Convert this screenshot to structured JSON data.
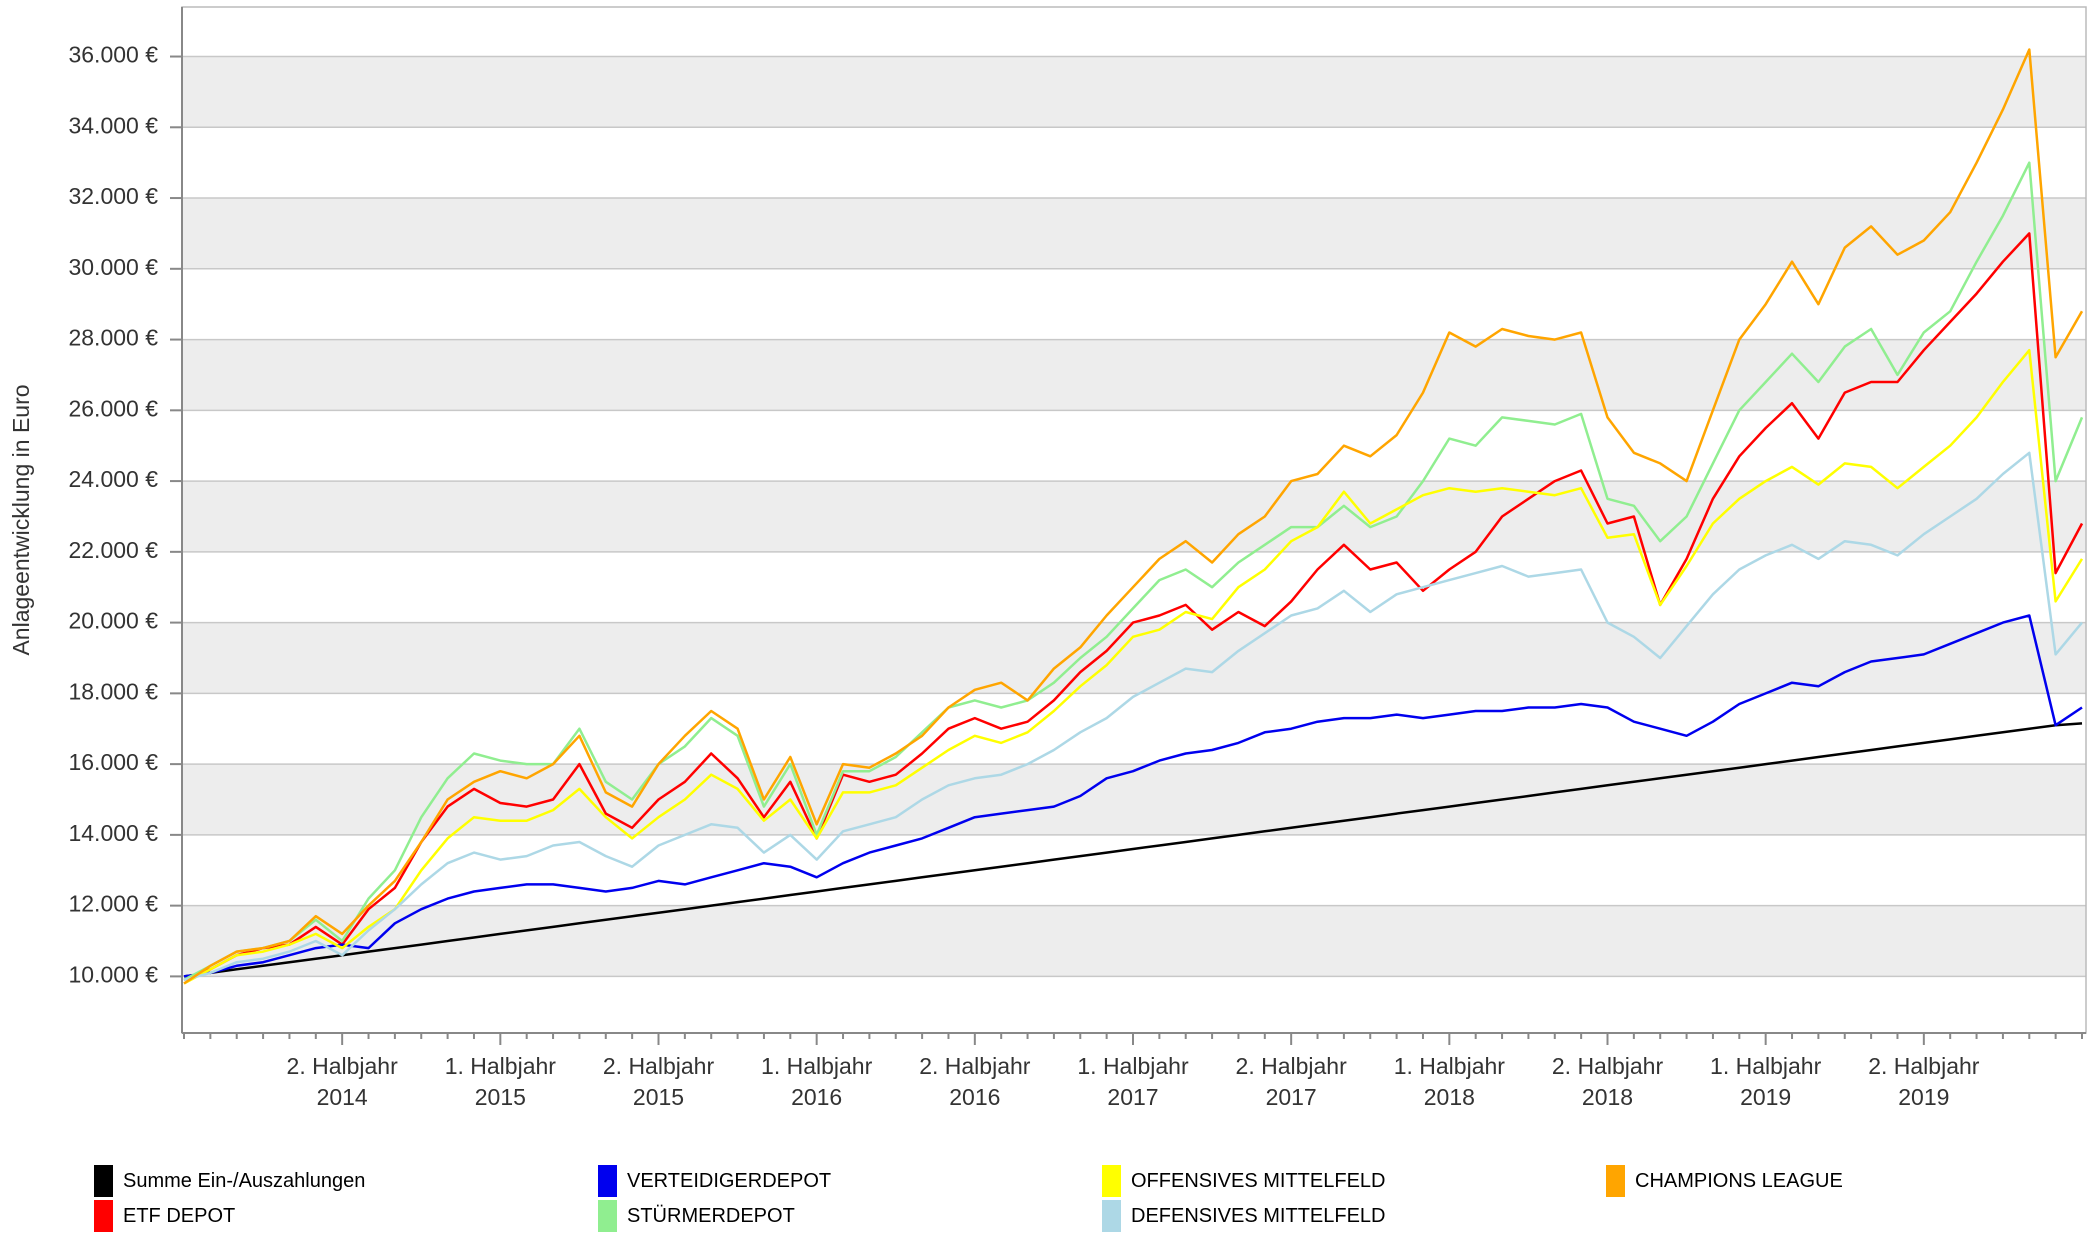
{
  "chart_data": {
    "type": "line",
    "y_label": "Anlageentwicklung  in Euro",
    "categories": [
      null,
      null,
      null,
      null,
      null,
      null,
      "2. Halbjahr 2014",
      null,
      null,
      null,
      null,
      null,
      "1. Halbjahr 2015",
      null,
      null,
      null,
      null,
      null,
      "2. Halbjahr 2015",
      null,
      null,
      null,
      null,
      null,
      "1. Halbjahr 2016",
      null,
      null,
      null,
      null,
      null,
      "2. Halbjahr 2016",
      null,
      null,
      null,
      null,
      null,
      "1. Halbjahr 2017",
      null,
      null,
      null,
      null,
      null,
      "2. Halbjahr 2017",
      null,
      null,
      null,
      null,
      null,
      "1. Halbjahr 2018",
      null,
      null,
      null,
      null,
      null,
      "2. Halbjahr 2018",
      null,
      null,
      null,
      null,
      null,
      "1. Halbjahr 2019",
      null,
      null,
      null,
      null,
      null,
      "2. Halbjahr 2019",
      null,
      null,
      null,
      null,
      null,
      null
    ],
    "ylim": [
      8400,
      37400
    ],
    "yticks": [
      {
        "value": 10000,
        "label": "10.000 €"
      },
      {
        "value": 12000,
        "label": "12.000 €"
      },
      {
        "value": 14000,
        "label": "14.000 €"
      },
      {
        "value": 16000,
        "label": "16.000 €"
      },
      {
        "value": 18000,
        "label": "18.000 €"
      },
      {
        "value": 20000,
        "label": "20.000 €"
      },
      {
        "value": 22000,
        "label": "22.000 €"
      },
      {
        "value": 24000,
        "label": "24.000 €"
      },
      {
        "value": 26000,
        "label": "26.000 €"
      },
      {
        "value": 28000,
        "label": "28.000 €"
      },
      {
        "value": 30000,
        "label": "30.000 €"
      },
      {
        "value": 32000,
        "label": "32.000 €"
      },
      {
        "value": 34000,
        "label": "34.000 €"
      },
      {
        "value": 36000,
        "label": "36.000 €"
      }
    ],
    "grid": true,
    "series": [
      {
        "name": "Summe Ein-/Auszahlungen",
        "color": "#000000",
        "values": [
          10000,
          10100,
          10200,
          10300,
          10400,
          10500,
          10600,
          10700,
          10800,
          10900,
          11000,
          11100,
          11200,
          11300,
          11400,
          11500,
          11600,
          11700,
          11800,
          11900,
          12000,
          12100,
          12200,
          12300,
          12400,
          12500,
          12600,
          12700,
          12800,
          12900,
          13000,
          13100,
          13200,
          13300,
          13400,
          13500,
          13600,
          13700,
          13800,
          13900,
          14000,
          14100,
          14200,
          14300,
          14400,
          14500,
          14600,
          14700,
          14800,
          14900,
          15000,
          15100,
          15200,
          15300,
          15400,
          15500,
          15600,
          15700,
          15800,
          15900,
          16000,
          16100,
          16200,
          16300,
          16400,
          16500,
          16600,
          16700,
          16800,
          16900,
          17000,
          17100,
          17150
        ]
      },
      {
        "name": "ETF DEPOT",
        "color": "#ff0000",
        "values": [
          9900,
          10200,
          10600,
          10800,
          10900,
          11400,
          10900,
          11900,
          12500,
          13800,
          14800,
          15300,
          14900,
          14800,
          15000,
          16000,
          14600,
          14200,
          15000,
          15500,
          16300,
          15600,
          14500,
          15500,
          13900,
          15700,
          15500,
          15700,
          16300,
          17000,
          17300,
          17000,
          17200,
          17800,
          18600,
          19200,
          20000,
          20200,
          20500,
          19800,
          20300,
          19900,
          20600,
          21500,
          22200,
          21500,
          21700,
          20900,
          21500,
          22000,
          23000,
          23500,
          24000,
          24300,
          22800,
          23000,
          20500,
          21800,
          23500,
          24700,
          25500,
          26200,
          25200,
          26500,
          26800,
          26800,
          27700,
          28500,
          29300,
          30200,
          31000,
          21400,
          22800
        ]
      },
      {
        "name": "VERTEIDIGERDEPOT",
        "color": "#0000ee",
        "values": [
          10000,
          10100,
          10300,
          10400,
          10600,
          10800,
          10900,
          10800,
          11500,
          11900,
          12200,
          12400,
          12500,
          12600,
          12600,
          12500,
          12400,
          12500,
          12700,
          12600,
          12800,
          13000,
          13200,
          13100,
          12800,
          13200,
          13500,
          13700,
          13900,
          14200,
          14500,
          14600,
          14700,
          14800,
          15100,
          15600,
          15800,
          16100,
          16300,
          16400,
          16600,
          16900,
          17000,
          17200,
          17300,
          17300,
          17400,
          17300,
          17400,
          17500,
          17500,
          17600,
          17600,
          17700,
          17600,
          17200,
          17000,
          16800,
          17200,
          17700,
          18000,
          18300,
          18200,
          18600,
          18900,
          19000,
          19100,
          19400,
          19700,
          20000,
          20200,
          17100,
          17600
        ]
      },
      {
        "name": "STÜRMERDEPOT",
        "color": "#90ee90",
        "values": [
          9900,
          10300,
          10700,
          10800,
          11000,
          11600,
          11000,
          12200,
          13000,
          14500,
          15600,
          16300,
          16100,
          16000,
          16000,
          17000,
          15500,
          15000,
          16000,
          16500,
          17300,
          16800,
          14800,
          16000,
          14000,
          15800,
          15800,
          16200,
          16900,
          17600,
          17800,
          17600,
          17800,
          18300,
          19000,
          19600,
          20400,
          21200,
          21500,
          21000,
          21700,
          22200,
          22700,
          22700,
          23300,
          22700,
          23000,
          24000,
          25200,
          25000,
          25800,
          25700,
          25600,
          25900,
          23500,
          23300,
          22300,
          23000,
          24500,
          26000,
          26800,
          27600,
          26800,
          27800,
          28300,
          27000,
          28200,
          28800,
          30200,
          31500,
          33000,
          24000,
          25800
        ]
      },
      {
        "name": "OFFENSIVES MITTELFELD",
        "color": "#ffff00",
        "values": [
          9800,
          10200,
          10600,
          10700,
          10900,
          11200,
          10800,
          11400,
          11900,
          13000,
          13900,
          14500,
          14400,
          14400,
          14700,
          15300,
          14500,
          13900,
          14500,
          15000,
          15700,
          15300,
          14400,
          15000,
          13900,
          15200,
          15200,
          15400,
          15900,
          16400,
          16800,
          16600,
          16900,
          17500,
          18200,
          18800,
          19600,
          19800,
          20300,
          20100,
          21000,
          21500,
          22300,
          22700,
          23700,
          22800,
          23200,
          23600,
          23800,
          23700,
          23800,
          23700,
          23600,
          23800,
          22400,
          22500,
          20500,
          21600,
          22800,
          23500,
          24000,
          24400,
          23900,
          24500,
          24400,
          23800,
          24400,
          25000,
          25800,
          26800,
          27700,
          20600,
          21800
        ]
      },
      {
        "name": "DEFENSIVES MITTELFELD",
        "color": "#add8e6",
        "values": [
          9900,
          10100,
          10400,
          10500,
          10700,
          11000,
          10600,
          11300,
          11900,
          12600,
          13200,
          13500,
          13300,
          13400,
          13700,
          13800,
          13400,
          13100,
          13700,
          14000,
          14300,
          14200,
          13500,
          14000,
          13300,
          14100,
          14300,
          14500,
          15000,
          15400,
          15600,
          15700,
          16000,
          16400,
          16900,
          17300,
          17900,
          18300,
          18700,
          18600,
          19200,
          19700,
          20200,
          20400,
          20900,
          20300,
          20800,
          21000,
          21200,
          21400,
          21600,
          21300,
          21400,
          21500,
          20000,
          19600,
          19000,
          19900,
          20800,
          21500,
          21900,
          22200,
          21800,
          22300,
          22200,
          21900,
          22500,
          23000,
          23500,
          24200,
          24800,
          19100,
          20000
        ]
      },
      {
        "name": "CHAMPIONS LEAGUE",
        "color": "#ffa500",
        "values": [
          9800,
          10300,
          10700,
          10800,
          11000,
          11700,
          11200,
          12000,
          12700,
          13800,
          15000,
          15500,
          15800,
          15600,
          16000,
          16800,
          15200,
          14800,
          16000,
          16800,
          17500,
          17000,
          15000,
          16200,
          14300,
          16000,
          15900,
          16300,
          16800,
          17600,
          18100,
          18300,
          17800,
          18700,
          19300,
          20200,
          21000,
          21800,
          22300,
          21700,
          22500,
          23000,
          24000,
          24200,
          25000,
          24700,
          25300,
          26500,
          28200,
          27800,
          28300,
          28100,
          28000,
          28200,
          25800,
          24800,
          24500,
          24000,
          26000,
          28000,
          29000,
          30200,
          29000,
          30600,
          31200,
          30400,
          30800,
          31600,
          33000,
          34500,
          36200,
          27500,
          28800
        ]
      }
    ]
  }
}
